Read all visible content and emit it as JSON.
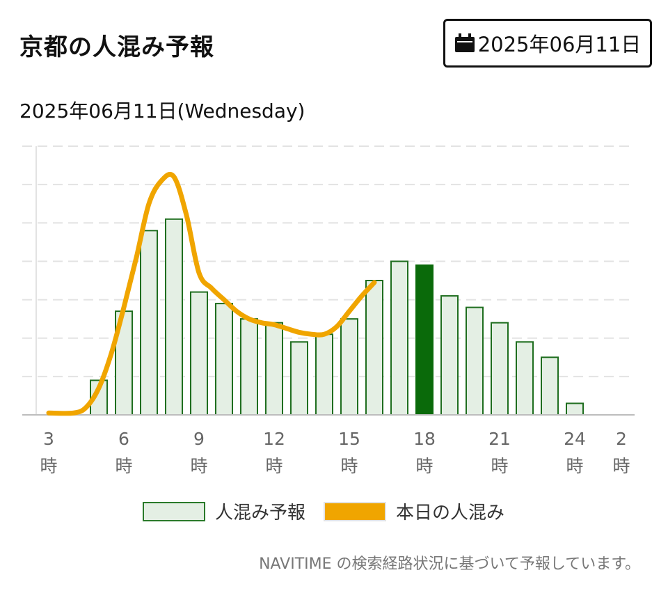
{
  "header": {
    "title": "京都の人混み予報",
    "date_button_label": "2025年06月11日",
    "calendar_icon": "calendar-icon"
  },
  "subtitle": "2025年06月11日(Wednesday)",
  "legend": {
    "forecast_label": "人混み予報",
    "today_label": "本日の人混み"
  },
  "note": "NAVITIME の検索経路状況に基づいて予報しています。",
  "colors": {
    "bar_fill": "#e4efe4",
    "bar_stroke": "#1f6e1f",
    "highlight_bar": "#0a6a0a",
    "today_line": "#f0a500",
    "grid": "#e3e3e3"
  },
  "chart_data": {
    "type": "bar",
    "hours": [
      3,
      4,
      5,
      6,
      7,
      8,
      9,
      10,
      11,
      12,
      13,
      14,
      15,
      16,
      17,
      18,
      19,
      20,
      21,
      22,
      23,
      24,
      1,
      2
    ],
    "forecast": [
      0,
      0,
      9,
      27,
      48,
      51,
      32,
      29,
      25,
      24,
      19,
      21,
      25,
      35,
      40,
      39,
      31,
      28,
      24,
      19,
      15,
      3,
      0,
      0
    ],
    "highlight_hour": 18,
    "today_line": {
      "hours": [
        3,
        4,
        4.5,
        5,
        5.5,
        6,
        6.5,
        7,
        7.5,
        8,
        8.5,
        9,
        9.5,
        10,
        10.5,
        11,
        11.5,
        12,
        12.5,
        13,
        13.5,
        14,
        14.5,
        15,
        15.5,
        16
      ],
      "values": [
        0.5,
        0.5,
        2,
        7,
        16,
        28,
        41,
        55,
        61,
        62,
        52,
        37,
        33,
        30,
        27,
        25,
        24,
        23.5,
        22.5,
        21.5,
        21,
        21,
        23,
        27,
        31,
        34.5
      ]
    },
    "ylim": [
      0,
      70
    ],
    "x_ticks": [
      {
        "hour": 3,
        "num": "3",
        "unit": "時"
      },
      {
        "hour": 6,
        "num": "6",
        "unit": "時"
      },
      {
        "hour": 9,
        "num": "9",
        "unit": "時"
      },
      {
        "hour": 12,
        "num": "12",
        "unit": "時"
      },
      {
        "hour": 15,
        "num": "15",
        "unit": "時"
      },
      {
        "hour": 18,
        "num": "18",
        "unit": "時"
      },
      {
        "hour": 21,
        "num": "21",
        "unit": "時"
      },
      {
        "hour": 24,
        "num": "24",
        "unit": "時"
      },
      {
        "hour": 2,
        "num": "2",
        "unit": "時"
      }
    ],
    "grid": true,
    "legend_position": "bottom"
  }
}
